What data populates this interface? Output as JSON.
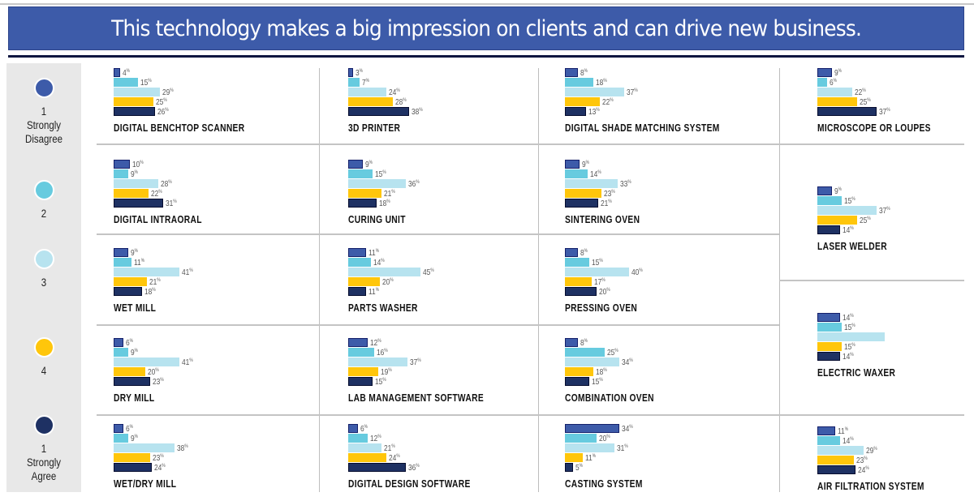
{
  "header": {
    "title": "This technology makes a big impression on clients and can drive new business."
  },
  "legend": [
    {
      "label": "1\nStrongly\nDisagree",
      "color": "#3D5BA9"
    },
    {
      "label": "2",
      "color": "#67CBDF"
    },
    {
      "label": "3",
      "color": "#B7E3EF"
    },
    {
      "label": "4",
      "color": "#FFC60B"
    },
    {
      "label": "1\nStrongly\nAgree",
      "color": "#1E3163"
    }
  ],
  "colors": {
    "banner": "#3D5BA9",
    "s1": "#3D5BA9",
    "s2": "#67CBDF",
    "s3": "#B7E3EF",
    "s4": "#FFC60B",
    "s5": "#1E3163"
  },
  "chart_data": {
    "type": "bar",
    "orientation": "horizontal",
    "title": "This technology makes a big impression on clients and can drive new business.",
    "xlabel": "",
    "ylabel": "",
    "unit": "%",
    "grid": false,
    "legend_position": "left",
    "series_names": [
      "1 Strongly Disagree",
      "2",
      "3",
      "4",
      "1 Strongly Agree"
    ],
    "categories": [
      "DIGITAL BENCHTOP SCANNER",
      "DIGITAL INTRAORAL",
      "WET MILL",
      "DRY MILL",
      "WET/DRY MILL",
      "3D PRINTER",
      "CURING UNIT",
      "PARTS WASHER",
      "LAB MANAGEMENT SOFTWARE",
      "DIGITAL DESIGN SOFTWARE",
      "DIGITAL SHADE MATCHING SYSTEM",
      "SINTERING OVEN",
      "PRESSING OVEN",
      "COMBINATION OVEN",
      "CASTING SYSTEM",
      "MICROSCOPE OR LOUPES",
      "LASER WELDER",
      "ELECTRIC WAXER",
      "AIR FILTRATION SYSTEM"
    ],
    "panels": [
      {
        "name": "DIGITAL BENCHTOP SCANNER",
        "values": [
          4,
          15,
          29,
          25,
          26
        ],
        "labels": [
          "4",
          "15",
          "29",
          "25",
          "26"
        ]
      },
      {
        "name": "DIGITAL INTRAORAL",
        "values": [
          10,
          9,
          28,
          22,
          31
        ],
        "labels": [
          "10",
          "9",
          "28",
          "22",
          "31"
        ]
      },
      {
        "name": "WET MILL",
        "values": [
          9,
          11,
          41,
          21,
          18
        ],
        "labels": [
          "9",
          "11",
          "41",
          "21",
          "18"
        ]
      },
      {
        "name": "DRY MILL",
        "values": [
          6,
          9,
          41,
          20,
          23
        ],
        "labels": [
          "6",
          "9",
          "41",
          "20",
          "23"
        ]
      },
      {
        "name": "WET/DRY MILL",
        "values": [
          6,
          9,
          38,
          23,
          24
        ],
        "labels": [
          "6",
          "9",
          "38",
          "23",
          "24"
        ]
      },
      {
        "name": "3D PRINTER",
        "values": [
          3,
          7,
          24,
          28,
          38
        ],
        "labels": [
          "3",
          "7",
          "24",
          "28",
          "38"
        ]
      },
      {
        "name": "CURING UNIT",
        "values": [
          9,
          15,
          36,
          21,
          18
        ],
        "labels": [
          "9",
          "15",
          "36",
          "21",
          "18"
        ]
      },
      {
        "name": "PARTS WASHER",
        "values": [
          11,
          14,
          45,
          20,
          11
        ],
        "labels": [
          "11",
          "14",
          "45",
          "20",
          "11"
        ]
      },
      {
        "name": "LAB MANAGEMENT SOFTWARE",
        "values": [
          12,
          16,
          37,
          19,
          15
        ],
        "labels": [
          "12",
          "16",
          "37",
          "19",
          "15"
        ]
      },
      {
        "name": "DIGITAL DESIGN SOFTWARE",
        "values": [
          6,
          12,
          21,
          24,
          36
        ],
        "labels": [
          "6",
          "12",
          "21",
          "24",
          "36"
        ]
      },
      {
        "name": "DIGITAL SHADE MATCHING SYSTEM",
        "values": [
          8,
          18,
          37,
          22,
          13
        ],
        "labels": [
          "8",
          "18",
          "37",
          "22",
          "13"
        ]
      },
      {
        "name": "SINTERING OVEN",
        "values": [
          9,
          14,
          33,
          23,
          21
        ],
        "labels": [
          "9",
          "14",
          "33",
          "23",
          "21"
        ]
      },
      {
        "name": "PRESSING OVEN",
        "values": [
          8,
          15,
          40,
          17,
          20
        ],
        "labels": [
          "8",
          "15",
          "40",
          "17",
          "20"
        ]
      },
      {
        "name": "COMBINATION OVEN",
        "values": [
          8,
          25,
          34,
          18,
          15
        ],
        "labels": [
          "8",
          "25",
          "34",
          "18",
          "15"
        ]
      },
      {
        "name": "CASTING SYSTEM",
        "values": [
          34,
          20,
          31,
          11,
          5
        ],
        "labels": [
          "34",
          "20",
          "31",
          "11",
          "5"
        ]
      },
      {
        "name": "MICROSCOPE OR LOUPES",
        "values": [
          9,
          6,
          22,
          25,
          37
        ],
        "labels": [
          "9",
          "6",
          "22",
          "25",
          "37"
        ]
      },
      {
        "name": "LASER WELDER",
        "values": [
          9,
          15,
          37,
          25,
          14
        ],
        "labels": [
          "9",
          "15",
          "37",
          "25",
          "14"
        ]
      },
      {
        "name": "ELECTRIC WAXER",
        "values": [
          14,
          15,
          42,
          15,
          14
        ],
        "labels": [
          "14",
          "15",
          "",
          "15",
          "14"
        ]
      },
      {
        "name": "AIR FILTRATION SYSTEM",
        "values": [
          11,
          14,
          29,
          23,
          24
        ],
        "labels": [
          "11",
          "14",
          "29",
          "23",
          "24"
        ]
      }
    ]
  }
}
